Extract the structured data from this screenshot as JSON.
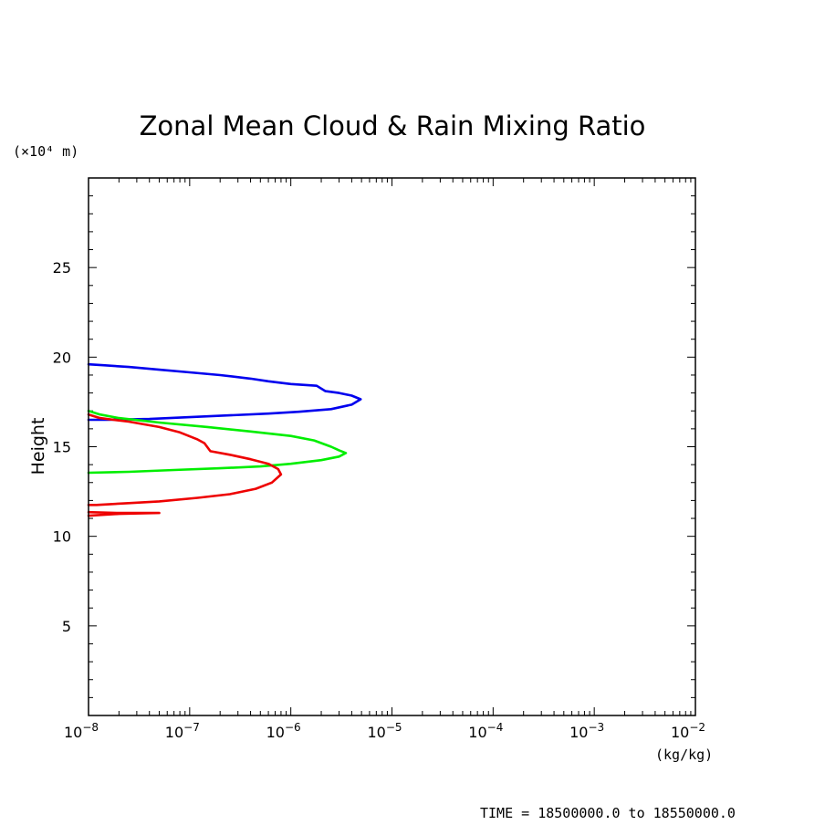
{
  "chart_data": {
    "type": "line",
    "title": "Zonal Mean Cloud & Rain Mixing Ratio",
    "ylabel": "Height",
    "y_unit": "(×10⁴ m)",
    "x_unit": "(kg/kg)",
    "x_scale": "log",
    "xlim": [
      1e-08,
      0.01
    ],
    "ylim": [
      0,
      30
    ],
    "y_ticks": [
      5,
      10,
      15,
      20,
      25
    ],
    "x_ticks": [
      {
        "value": 1e-08,
        "base": "10",
        "exp": "−8"
      },
      {
        "value": 1e-07,
        "base": "10",
        "exp": "−7"
      },
      {
        "value": 1e-06,
        "base": "10",
        "exp": "−6"
      },
      {
        "value": 1e-05,
        "base": "10",
        "exp": "−5"
      },
      {
        "value": 0.0001,
        "base": "10",
        "exp": "−4"
      },
      {
        "value": 0.001,
        "base": "10",
        "exp": "−3"
      },
      {
        "value": 0.01,
        "base": "10",
        "exp": "−2"
      }
    ],
    "footer": "TIME = 18500000.0 to 18550000.0",
    "grid": false,
    "series": [
      {
        "color": "#0000ee",
        "points": [
          [
            1e-08,
            19.6
          ],
          [
            1.4e-08,
            19.55
          ],
          [
            2.5e-08,
            19.45
          ],
          [
            5e-08,
            19.3
          ],
          [
            1e-07,
            19.15
          ],
          [
            2e-07,
            19.0
          ],
          [
            4e-07,
            18.8
          ],
          [
            6e-07,
            18.65
          ],
          [
            1e-06,
            18.5
          ],
          [
            1.8e-06,
            18.4
          ],
          [
            2.2e-06,
            18.1
          ],
          [
            3e-06,
            18.0
          ],
          [
            4e-06,
            17.85
          ],
          [
            4.9e-06,
            17.65
          ],
          [
            4e-06,
            17.35
          ],
          [
            2.5e-06,
            17.1
          ],
          [
            1.2e-06,
            16.95
          ],
          [
            6e-07,
            16.85
          ],
          [
            2.5e-07,
            16.75
          ],
          [
            1e-07,
            16.65
          ],
          [
            4e-08,
            16.55
          ],
          [
            1.5e-08,
            16.5
          ],
          [
            1e-08,
            16.5
          ]
        ]
      },
      {
        "color": "#00ee00",
        "points": [
          [
            1e-08,
            17.0
          ],
          [
            1.3e-08,
            16.8
          ],
          [
            2e-08,
            16.6
          ],
          [
            5e-08,
            16.35
          ],
          [
            1.5e-07,
            16.1
          ],
          [
            4e-07,
            15.85
          ],
          [
            1e-06,
            15.6
          ],
          [
            1.7e-06,
            15.35
          ],
          [
            2.5e-06,
            15.0
          ],
          [
            3e-06,
            14.8
          ],
          [
            3.5e-06,
            14.65
          ],
          [
            3e-06,
            14.45
          ],
          [
            2e-06,
            14.25
          ],
          [
            1e-06,
            14.05
          ],
          [
            5e-07,
            13.9
          ],
          [
            2e-07,
            13.8
          ],
          [
            7e-08,
            13.7
          ],
          [
            2.5e-08,
            13.6
          ],
          [
            1e-08,
            13.55
          ]
        ]
      },
      {
        "color": "#ee0000",
        "points": [
          [
            1e-08,
            16.8
          ],
          [
            1.3e-08,
            16.6
          ],
          [
            2.5e-08,
            16.4
          ],
          [
            5e-08,
            16.1
          ],
          [
            8e-08,
            15.8
          ],
          [
            1.2e-07,
            15.4
          ],
          [
            1.4e-07,
            15.2
          ],
          [
            1.6e-07,
            14.75
          ],
          [
            2.5e-07,
            14.55
          ],
          [
            4e-07,
            14.3
          ],
          [
            6e-07,
            14.05
          ],
          [
            7.5e-07,
            13.75
          ],
          [
            8e-07,
            13.45
          ],
          [
            6.5e-07,
            13.0
          ],
          [
            4.5e-07,
            12.65
          ],
          [
            2.5e-07,
            12.35
          ],
          [
            1.2e-07,
            12.15
          ],
          [
            5e-08,
            11.95
          ],
          [
            2.5e-08,
            11.85
          ],
          [
            1.2e-08,
            11.75
          ],
          [
            1e-08,
            11.75
          ]
        ]
      },
      {
        "color": "#ee0000",
        "points": [
          [
            1e-08,
            11.35
          ],
          [
            2e-08,
            11.3
          ],
          [
            5e-08,
            11.3
          ],
          [
            2e-08,
            11.25
          ],
          [
            1e-08,
            11.15
          ]
        ]
      }
    ]
  }
}
